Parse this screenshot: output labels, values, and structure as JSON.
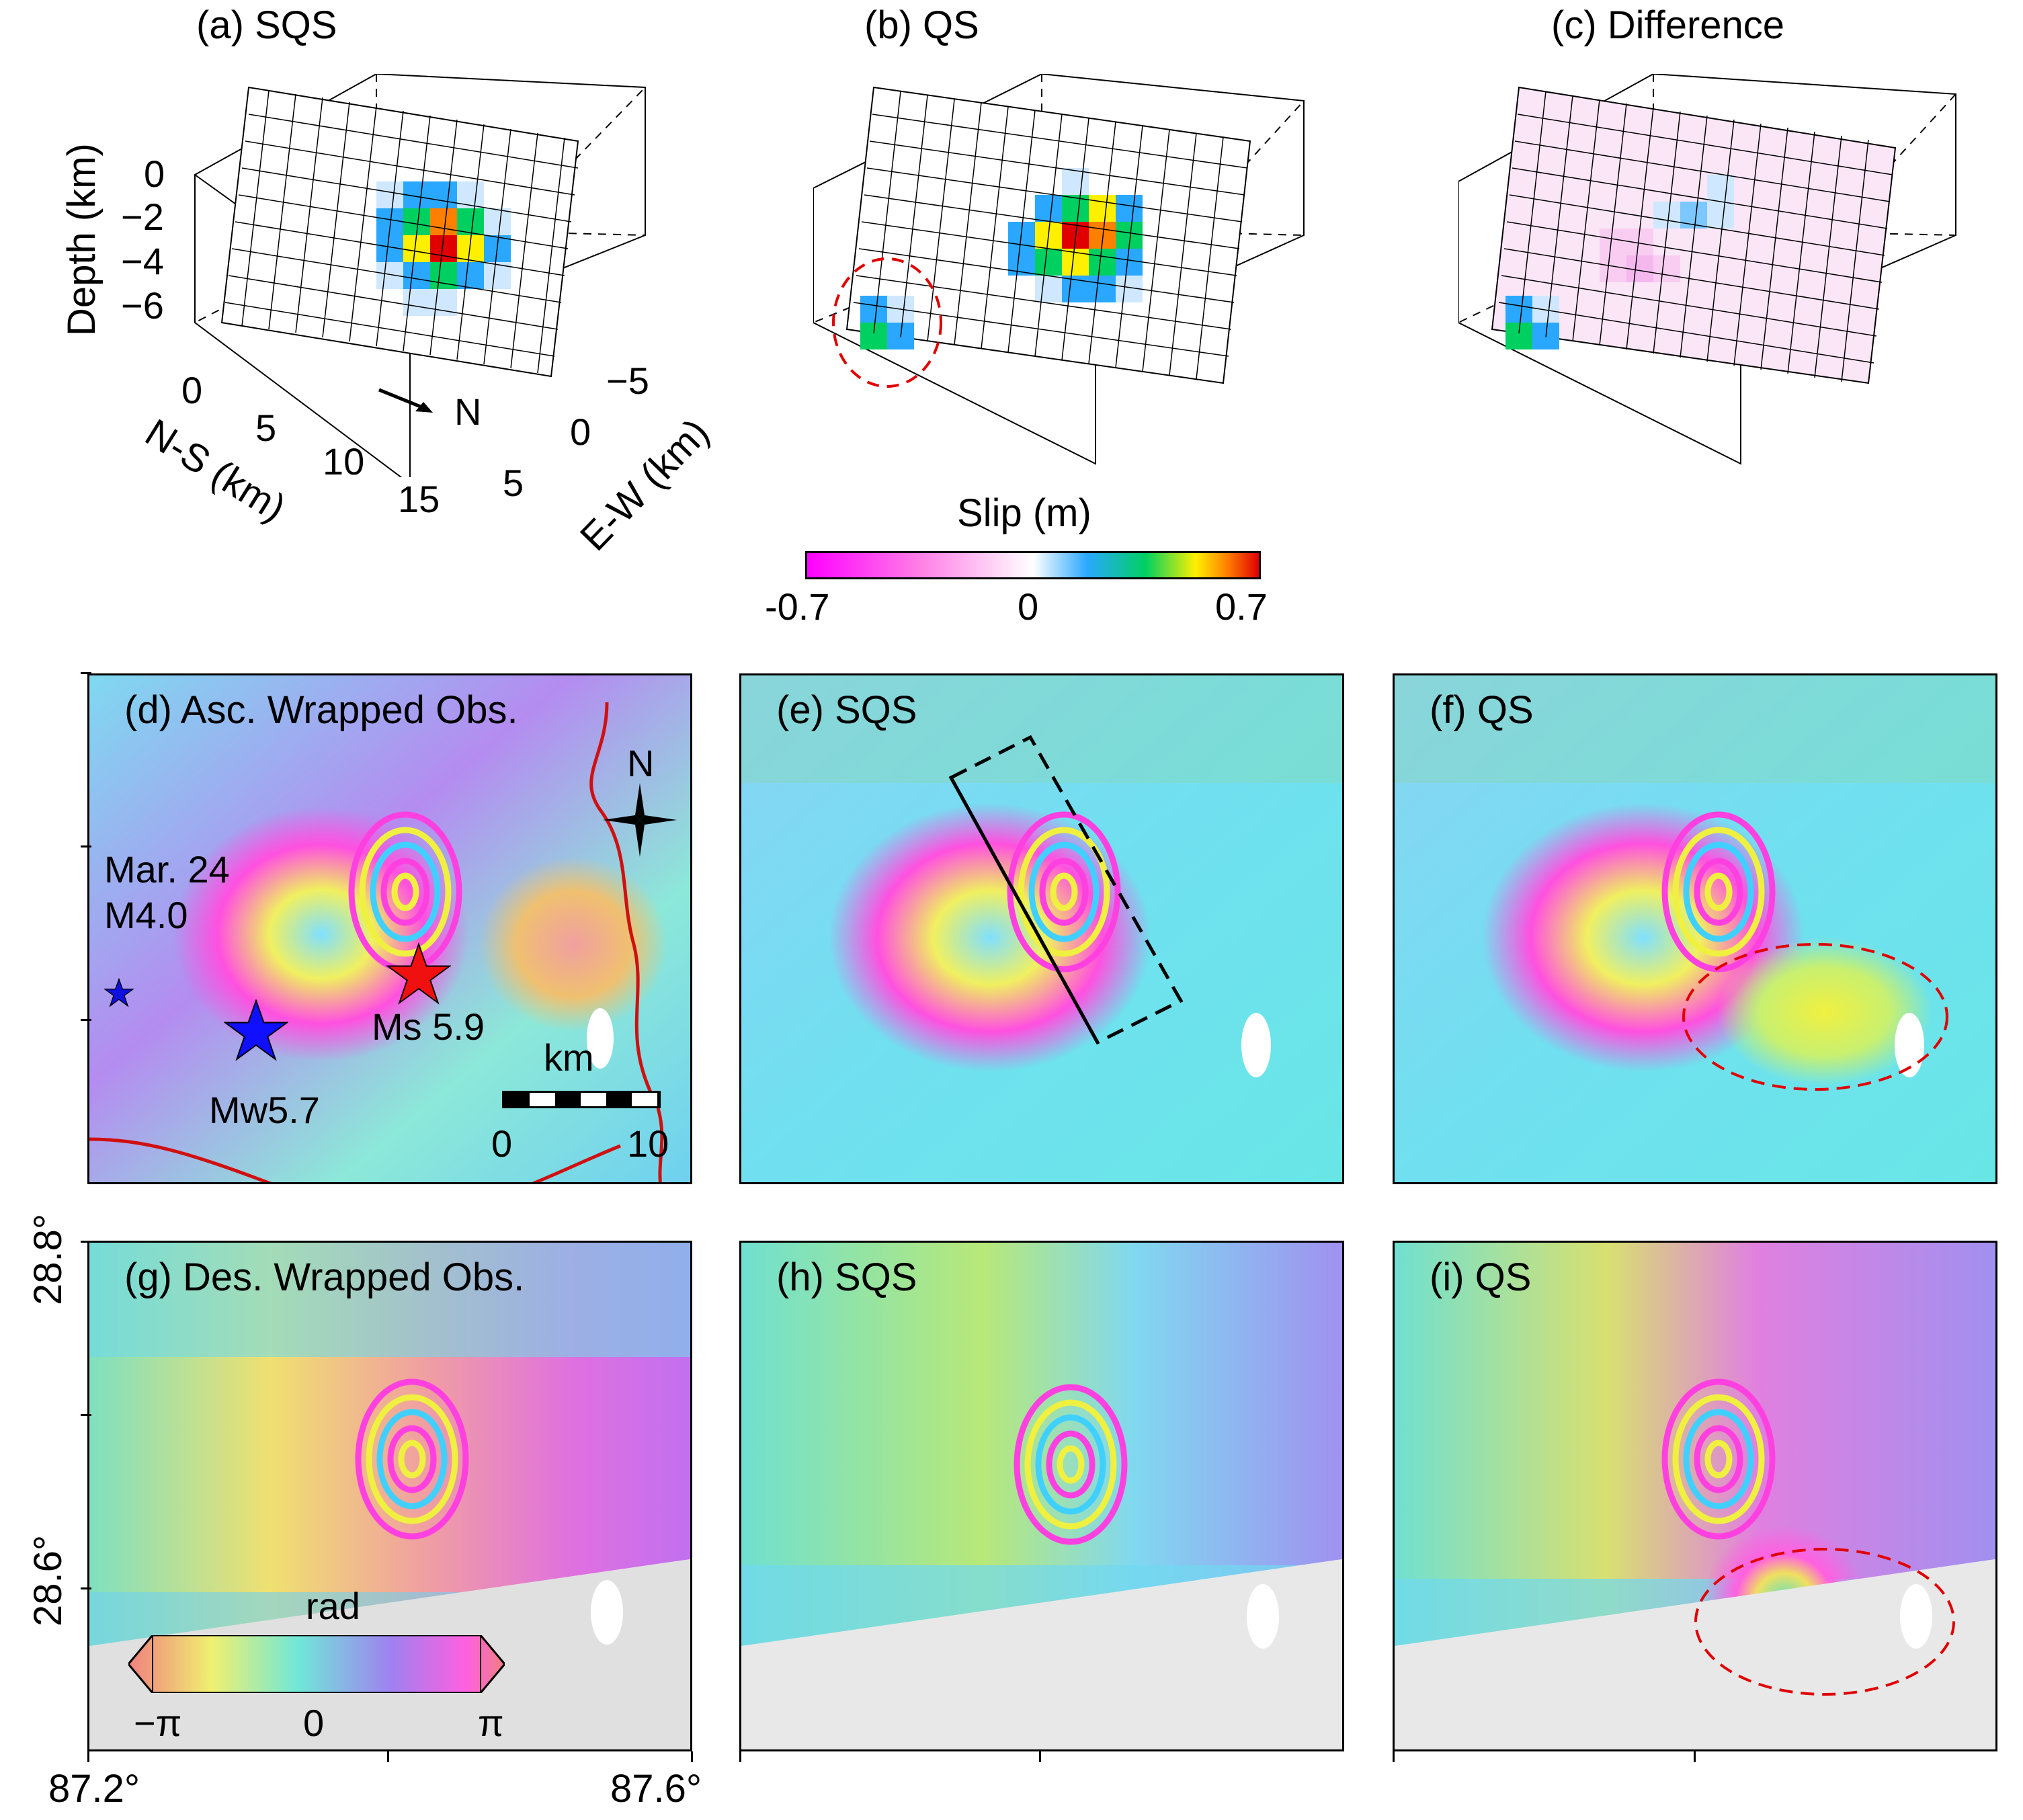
{
  "figure": {
    "top_panels": [
      {
        "id": "a",
        "title": "(a) SQS"
      },
      {
        "id": "b",
        "title": "(b) QS"
      },
      {
        "id": "c",
        "title": "(c) Difference"
      }
    ],
    "axes_3d": {
      "depth_label": "Depth (km)",
      "depth_ticks": [
        "0",
        "−2",
        "−4",
        "−6"
      ],
      "ns_label": "N-S (km)",
      "ns_ticks": [
        "0",
        "5",
        "10",
        "15"
      ],
      "ew_label": "E-W (km)",
      "ew_ticks": [
        "−5",
        "0",
        "5"
      ],
      "north_arrow": "N"
    },
    "slip_colorbar": {
      "title": "Slip (m)",
      "min_label": "-0.7",
      "mid_label": "0",
      "max_label": "0.7",
      "colors": [
        "#ff00ff",
        "#ff7fe6",
        "#ffffff",
        "#2aa8ff",
        "#00d060",
        "#fff000",
        "#ff8000",
        "#e00000"
      ]
    },
    "map_panels": [
      {
        "id": "d",
        "title": "(d) Asc. Wrapped Obs."
      },
      {
        "id": "e",
        "title": "(e) SQS"
      },
      {
        "id": "f",
        "title": "(f) QS"
      },
      {
        "id": "g",
        "title": "(g) Des. Wrapped Obs."
      },
      {
        "id": "h",
        "title": "(h) SQS"
      },
      {
        "id": "i",
        "title": "(i) QS"
      }
    ],
    "annotations": {
      "event1_line1": "Mar. 24",
      "event1_line2": "M4.0",
      "mainshock": "Ms 5.9",
      "event2": "Mw5.7",
      "compass": "N",
      "scale_unit": "km",
      "scale_start": "0",
      "scale_end": "10"
    },
    "phase_colorbar": {
      "title": "rad",
      "min_label": "−π",
      "mid_label": "0",
      "max_label": "π"
    },
    "map_axes": {
      "lat_ticks": [
        "28.8°",
        "28.6°"
      ],
      "lon_ticks": [
        "87.2°",
        "87.6°"
      ]
    }
  }
}
